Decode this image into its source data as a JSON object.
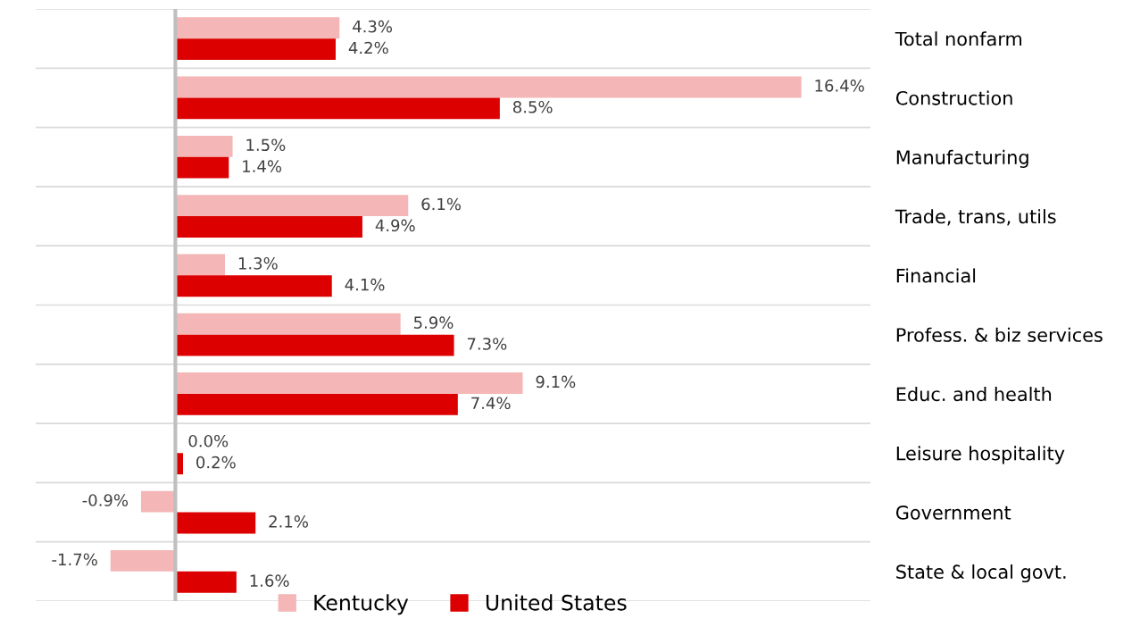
{
  "chart_data": {
    "type": "bar",
    "orientation": "horizontal",
    "categories": [
      "Total nonfarm",
      "Construction",
      "Manufacturing",
      "Trade, trans, utils",
      "Financial",
      "Profess. & biz services",
      "Educ. and health",
      "Leisure hospitality",
      "Government",
      "State & local govt."
    ],
    "series": [
      {
        "name": "Kentucky",
        "color": "#f4b6b6",
        "values": [
          4.3,
          16.4,
          1.5,
          6.1,
          1.3,
          5.9,
          9.1,
          0.0,
          -0.9,
          -1.7
        ],
        "value_labels": [
          "4.3%",
          "16.4%",
          "1.5%",
          "6.1%",
          "1.3%",
          "5.9%",
          "9.1%",
          "0.0%",
          "-0.9%",
          "-1.7%"
        ]
      },
      {
        "name": "United States",
        "color": "#dc0000",
        "values": [
          4.2,
          8.5,
          1.4,
          4.9,
          4.1,
          7.3,
          7.4,
          0.2,
          2.1,
          1.6
        ],
        "value_labels": [
          "4.2%",
          "8.5%",
          "1.4%",
          "4.9%",
          "4.1%",
          "7.3%",
          "7.4%",
          "0.2%",
          "2.1%",
          "1.6%"
        ]
      }
    ],
    "tick_labels": "y",
    "grid": "y",
    "legend": "bottom"
  }
}
